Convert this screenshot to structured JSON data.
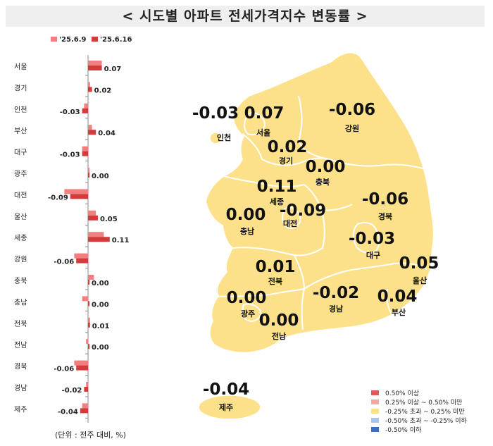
{
  "title": "< 시도별 아파트 전세가격지수 변동률 >",
  "unit_note": "(단위 : 전주 대비, %)",
  "colors": {
    "prev_week": "#f08080",
    "this_week": "#d43a3a",
    "map_fill": "#fde08a",
    "map_stroke": "#ffffff"
  },
  "chart_data": {
    "type": "bar",
    "orientation": "horizontal",
    "categories": [
      "서울",
      "경기",
      "인천",
      "부산",
      "대구",
      "광주",
      "대전",
      "울산",
      "세종",
      "강원",
      "충북",
      "충남",
      "전북",
      "전남",
      "경북",
      "경남",
      "제주"
    ],
    "series": [
      {
        "name": "'25.6.9",
        "values": [
          0.07,
          0.01,
          -0.02,
          0.02,
          -0.03,
          0.0,
          -0.12,
          0.04,
          0.08,
          -0.07,
          0.03,
          -0.03,
          0.01,
          -0.01,
          -0.07,
          -0.01,
          -0.03
        ]
      },
      {
        "name": "'25.6.16",
        "values": [
          0.07,
          0.02,
          -0.03,
          0.04,
          -0.03,
          0.0,
          -0.09,
          0.05,
          0.11,
          -0.06,
          0.0,
          0.0,
          0.01,
          0.0,
          -0.06,
          -0.02,
          -0.04
        ]
      }
    ],
    "data_labels": [
      "0.07",
      "0.02",
      "-0.03",
      "0.04",
      "-0.03",
      "0.00",
      "-0.09",
      "0.05",
      "0.11",
      "-0.06",
      "0.00",
      "0.00",
      "0.01",
      "0.00",
      "-0.06",
      "-0.02",
      "-0.04"
    ],
    "legend": "top"
  },
  "map_labels": [
    {
      "region": "인천",
      "value": "-0.03"
    },
    {
      "region": "서울",
      "value": "0.07"
    },
    {
      "region": "강원",
      "value": "-0.06"
    },
    {
      "region": "경기",
      "value": "0.02"
    },
    {
      "region": "충북",
      "value": "0.00"
    },
    {
      "region": "세종",
      "value": "0.11"
    },
    {
      "region": "대전",
      "value": "-0.09"
    },
    {
      "region": "경북",
      "value": "-0.06"
    },
    {
      "region": "충남",
      "value": "0.00"
    },
    {
      "region": "대구",
      "value": "-0.03"
    },
    {
      "region": "울산",
      "value": "0.05"
    },
    {
      "region": "전북",
      "value": "0.01"
    },
    {
      "region": "광주",
      "value": "0.00"
    },
    {
      "region": "경남",
      "value": "-0.02"
    },
    {
      "region": "부산",
      "value": "0.04"
    },
    {
      "region": "전남",
      "value": "0.00"
    },
    {
      "region": "제주",
      "value": "-0.04"
    }
  ],
  "map_legend": [
    {
      "label": "0.50% 이상",
      "color": "#e05a5a"
    },
    {
      "label": "0.25% 이상 ~ 0.50% 미만",
      "color": "#f4a7a7"
    },
    {
      "label": "-0.25% 초과 ~ 0.25% 미만",
      "color": "#fde08a"
    },
    {
      "label": "-0.50% 초과 ~ -0.25% 이하",
      "color": "#a9c4ea"
    },
    {
      "label": "-0.50% 이하",
      "color": "#3a6fc4"
    }
  ]
}
